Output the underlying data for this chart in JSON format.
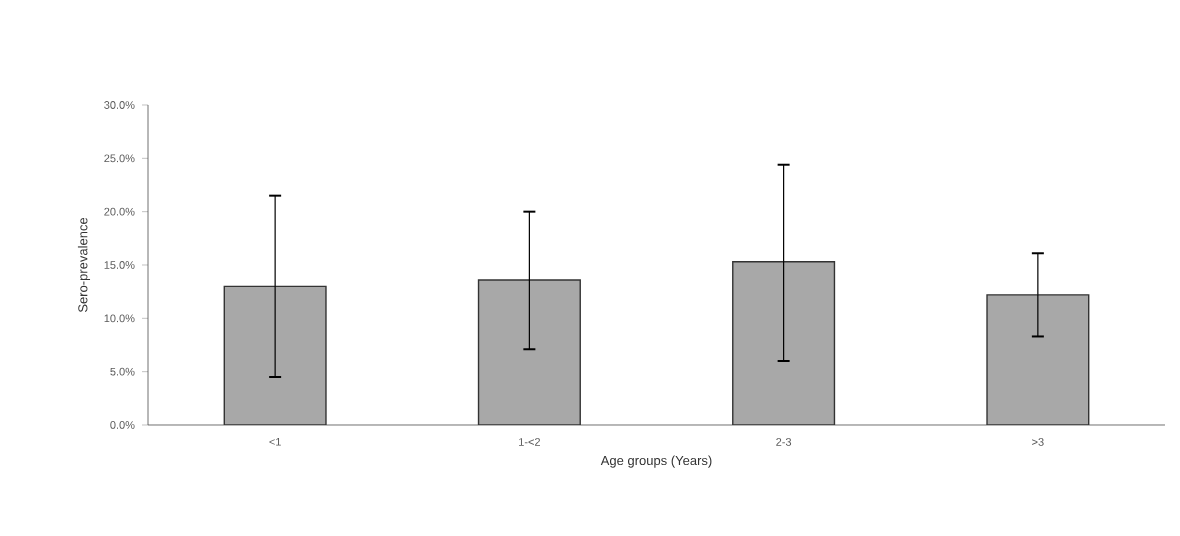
{
  "chart_data": {
    "type": "bar",
    "xlabel": "Age groups  (Years)",
    "ylabel": "Sero-prevalence",
    "categories": [
      "<1",
      "1-<2",
      "2-3",
      ">3"
    ],
    "values": [
      13.0,
      13.6,
      15.3,
      12.2
    ],
    "errors": [
      [
        4.5,
        21.5
      ],
      [
        7.1,
        20.0
      ],
      [
        6.0,
        24.4
      ],
      [
        8.3,
        16.1
      ]
    ],
    "color": "#a8a8a8",
    "ylim": [
      0,
      30
    ],
    "yticks": [
      {
        "value": 0,
        "label": "0.0%"
      },
      {
        "value": 5,
        "label": "5.0%"
      },
      {
        "value": 10,
        "label": "10.0%"
      },
      {
        "value": 15,
        "label": "15.0%"
      },
      {
        "value": 20,
        "label": "20.0%"
      },
      {
        "value": 25,
        "label": "25.0%"
      },
      {
        "value": 30,
        "label": "30.0%"
      }
    ],
    "grid": false
  }
}
